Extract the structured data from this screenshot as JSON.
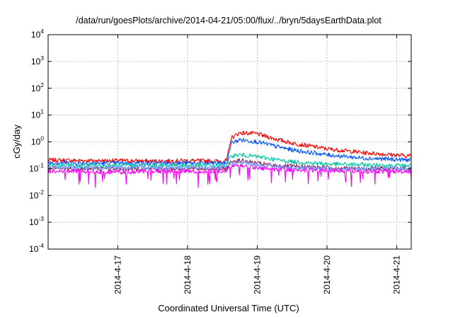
{
  "chart_data": {
    "type": "line",
    "title": "/data/run/goesPlots/archive/2014-04-21/05:00/flux/../bryn/5daysEarthData.plot",
    "xlabel": "Coordinated Universal Time (UTC)",
    "ylabel": "cGy/day",
    "yscale": "log",
    "ylim": [
      0.0001,
      10000
    ],
    "xlim": [
      "2014-04-16 00:00",
      "2014-04-21 05:00"
    ],
    "y_ticks": [
      {
        "base": "10",
        "exp": "-4",
        "value": 0.0001
      },
      {
        "base": "10",
        "exp": "-3",
        "value": 0.001
      },
      {
        "base": "10",
        "exp": "-2",
        "value": 0.01
      },
      {
        "base": "10",
        "exp": "-1",
        "value": 0.1
      },
      {
        "base": "10",
        "exp": "0",
        "value": 1
      },
      {
        "base": "10",
        "exp": "1",
        "value": 10
      },
      {
        "base": "10",
        "exp": "2",
        "value": 100
      },
      {
        "base": "10",
        "exp": "3",
        "value": 1000
      },
      {
        "base": "10",
        "exp": "4",
        "value": 10000
      }
    ],
    "x_ticks": [
      "2014-4-17",
      "2014-4-18",
      "2014-4-19",
      "2014-4-20",
      "2014-4-21"
    ],
    "grid": true,
    "x": [
      "2014-04-16 00:00",
      "2014-04-16 12:00",
      "2014-04-17 00:00",
      "2014-04-17 12:00",
      "2014-04-18 00:00",
      "2014-04-18 12:00",
      "2014-04-18 13:30",
      "2014-04-18 15:00",
      "2014-04-18 18:00",
      "2014-04-19 00:00",
      "2014-04-19 06:00",
      "2014-04-19 12:00",
      "2014-04-20 00:00",
      "2014-04-20 12:00",
      "2014-04-21 00:00",
      "2014-04-21 05:00"
    ],
    "series": [
      {
        "color": "#ff0000",
        "values": [
          0.21,
          0.2,
          0.2,
          0.19,
          0.2,
          0.19,
          0.2,
          1.4,
          2.2,
          2.0,
          1.3,
          0.9,
          0.55,
          0.4,
          0.32,
          0.3
        ]
      },
      {
        "color": "#0055ff",
        "values": [
          0.17,
          0.16,
          0.16,
          0.16,
          0.16,
          0.16,
          0.16,
          0.9,
          1.2,
          1.0,
          0.7,
          0.5,
          0.33,
          0.25,
          0.22,
          0.21
        ]
      },
      {
        "color": "#00c7a0",
        "values": [
          0.13,
          0.13,
          0.13,
          0.13,
          0.13,
          0.13,
          0.13,
          0.3,
          0.33,
          0.28,
          0.22,
          0.18,
          0.15,
          0.14,
          0.13,
          0.13
        ]
      },
      {
        "color": "#8a1f55",
        "values": [
          0.1,
          0.1,
          0.1,
          0.1,
          0.1,
          0.1,
          0.1,
          0.19,
          0.2,
          0.16,
          0.13,
          0.12,
          0.11,
          0.1,
          0.1,
          0.1
        ]
      },
      {
        "color": "#7aa0ff",
        "values": [
          0.11,
          0.11,
          0.11,
          0.11,
          0.11,
          0.11,
          0.11,
          0.16,
          0.17,
          0.14,
          0.12,
          0.11,
          0.1,
          0.1,
          0.1,
          0.1
        ]
      },
      {
        "color": "#ff00ff",
        "values": [
          0.08,
          0.08,
          0.075,
          0.08,
          0.08,
          0.08,
          0.08,
          0.12,
          0.13,
          0.11,
          0.095,
          0.09,
          0.085,
          0.08,
          0.08,
          0.08
        ]
      }
    ]
  }
}
